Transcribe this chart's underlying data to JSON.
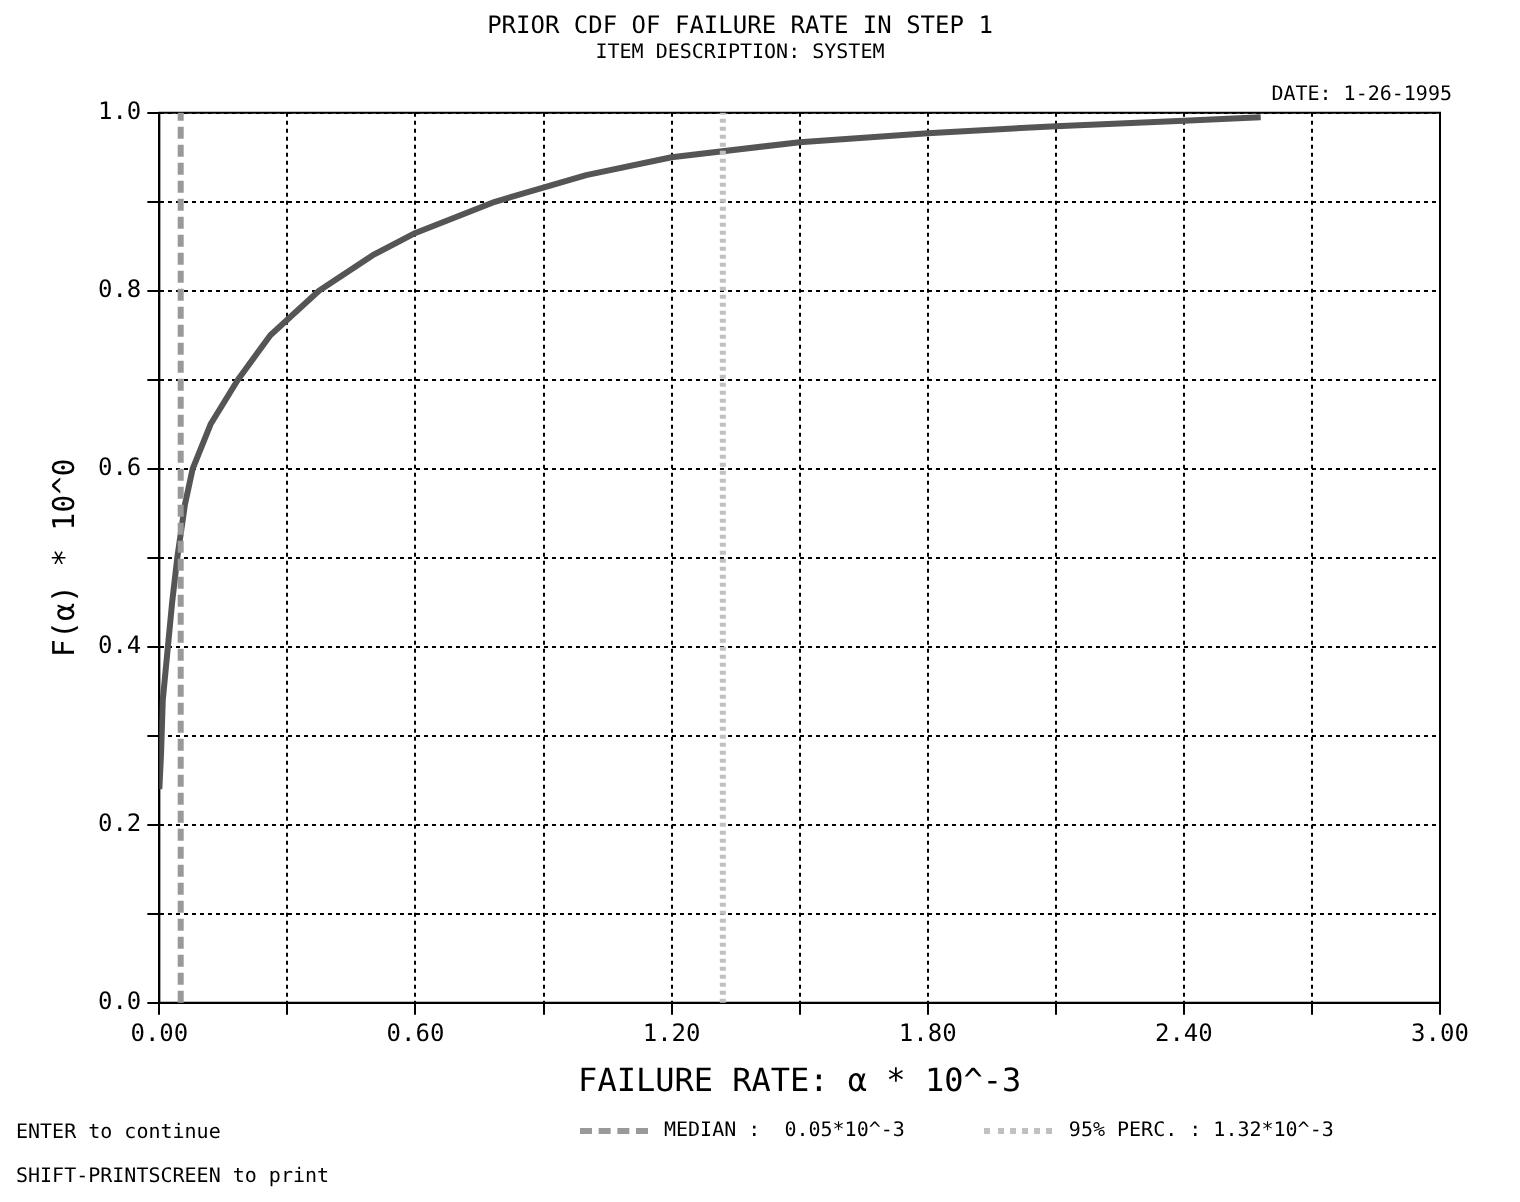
{
  "chart_data": {
    "type": "line",
    "title": "PRIOR CDF OF FAILURE RATE IN STEP 1",
    "subtitle": "ITEM DESCRIPTION: SYSTEM",
    "xlabel": "FAILURE RATE: α * 10^-3",
    "ylabel": "F(α) * 10^0",
    "annotations": [
      "DATE: 1-26-1995",
      "ENTER to continue",
      "SHIFT-PRINTSCREEN to print"
    ],
    "series": [
      {
        "color": "#555555",
        "x": [
          0.0,
          0.004,
          0.008,
          0.02,
          0.03,
          0.042,
          0.06,
          0.078,
          0.12,
          0.184,
          0.26,
          0.374,
          0.5,
          0.6,
          0.786,
          1.0,
          1.2,
          1.5,
          1.8,
          2.1,
          2.4,
          2.58
        ],
        "values": [
          0.24,
          0.28,
          0.34,
          0.4,
          0.45,
          0.5,
          0.56,
          0.6,
          0.65,
          0.7,
          0.75,
          0.8,
          0.84,
          0.865,
          0.9,
          0.93,
          0.95,
          0.967,
          0.977,
          0.985,
          0.991,
          0.995
        ]
      }
    ],
    "ref_lines": [
      {
        "axis": "x",
        "value": 0.05,
        "label": "MEDIAN :  0.05*10^-3",
        "color": "#999999",
        "line_style": "dashed"
      },
      {
        "axis": "x",
        "value": 1.32,
        "label": "95% PERC. : 1.32*10^-3",
        "color": "#c0c0c0",
        "line_style": "dotted"
      }
    ],
    "xlim": [
      0,
      3
    ],
    "xticks": [
      {
        "value": 0,
        "label": "0.00"
      },
      {
        "value": 0.3,
        "label": null
      },
      {
        "value": 0.6,
        "label": "0.60"
      },
      {
        "value": 0.9,
        "label": null
      },
      {
        "value": 1.2,
        "label": "1.20"
      },
      {
        "value": 1.5,
        "label": null
      },
      {
        "value": 1.8,
        "label": "1.80"
      },
      {
        "value": 2.1,
        "label": null
      },
      {
        "value": 2.4,
        "label": "2.40"
      },
      {
        "value": 2.7,
        "label": null
      },
      {
        "value": 3,
        "label": "3.00"
      }
    ],
    "ylim": [
      0,
      1
    ],
    "yticks": [
      {
        "value": 0,
        "label": "0.0"
      },
      {
        "value": 0.1,
        "label": null
      },
      0.2,
      {
        "value": 0.3,
        "label": null
      },
      0.4,
      {
        "value": 0.5,
        "label": null
      },
      0.6,
      {
        "value": 0.7,
        "label": null
      },
      0.8,
      {
        "value": 0.9,
        "label": null
      },
      {
        "value": 1,
        "label": "1.0"
      }
    ],
    "grid": true,
    "marker": "none",
    "line_style": "solid",
    "legend": "bottom"
  }
}
